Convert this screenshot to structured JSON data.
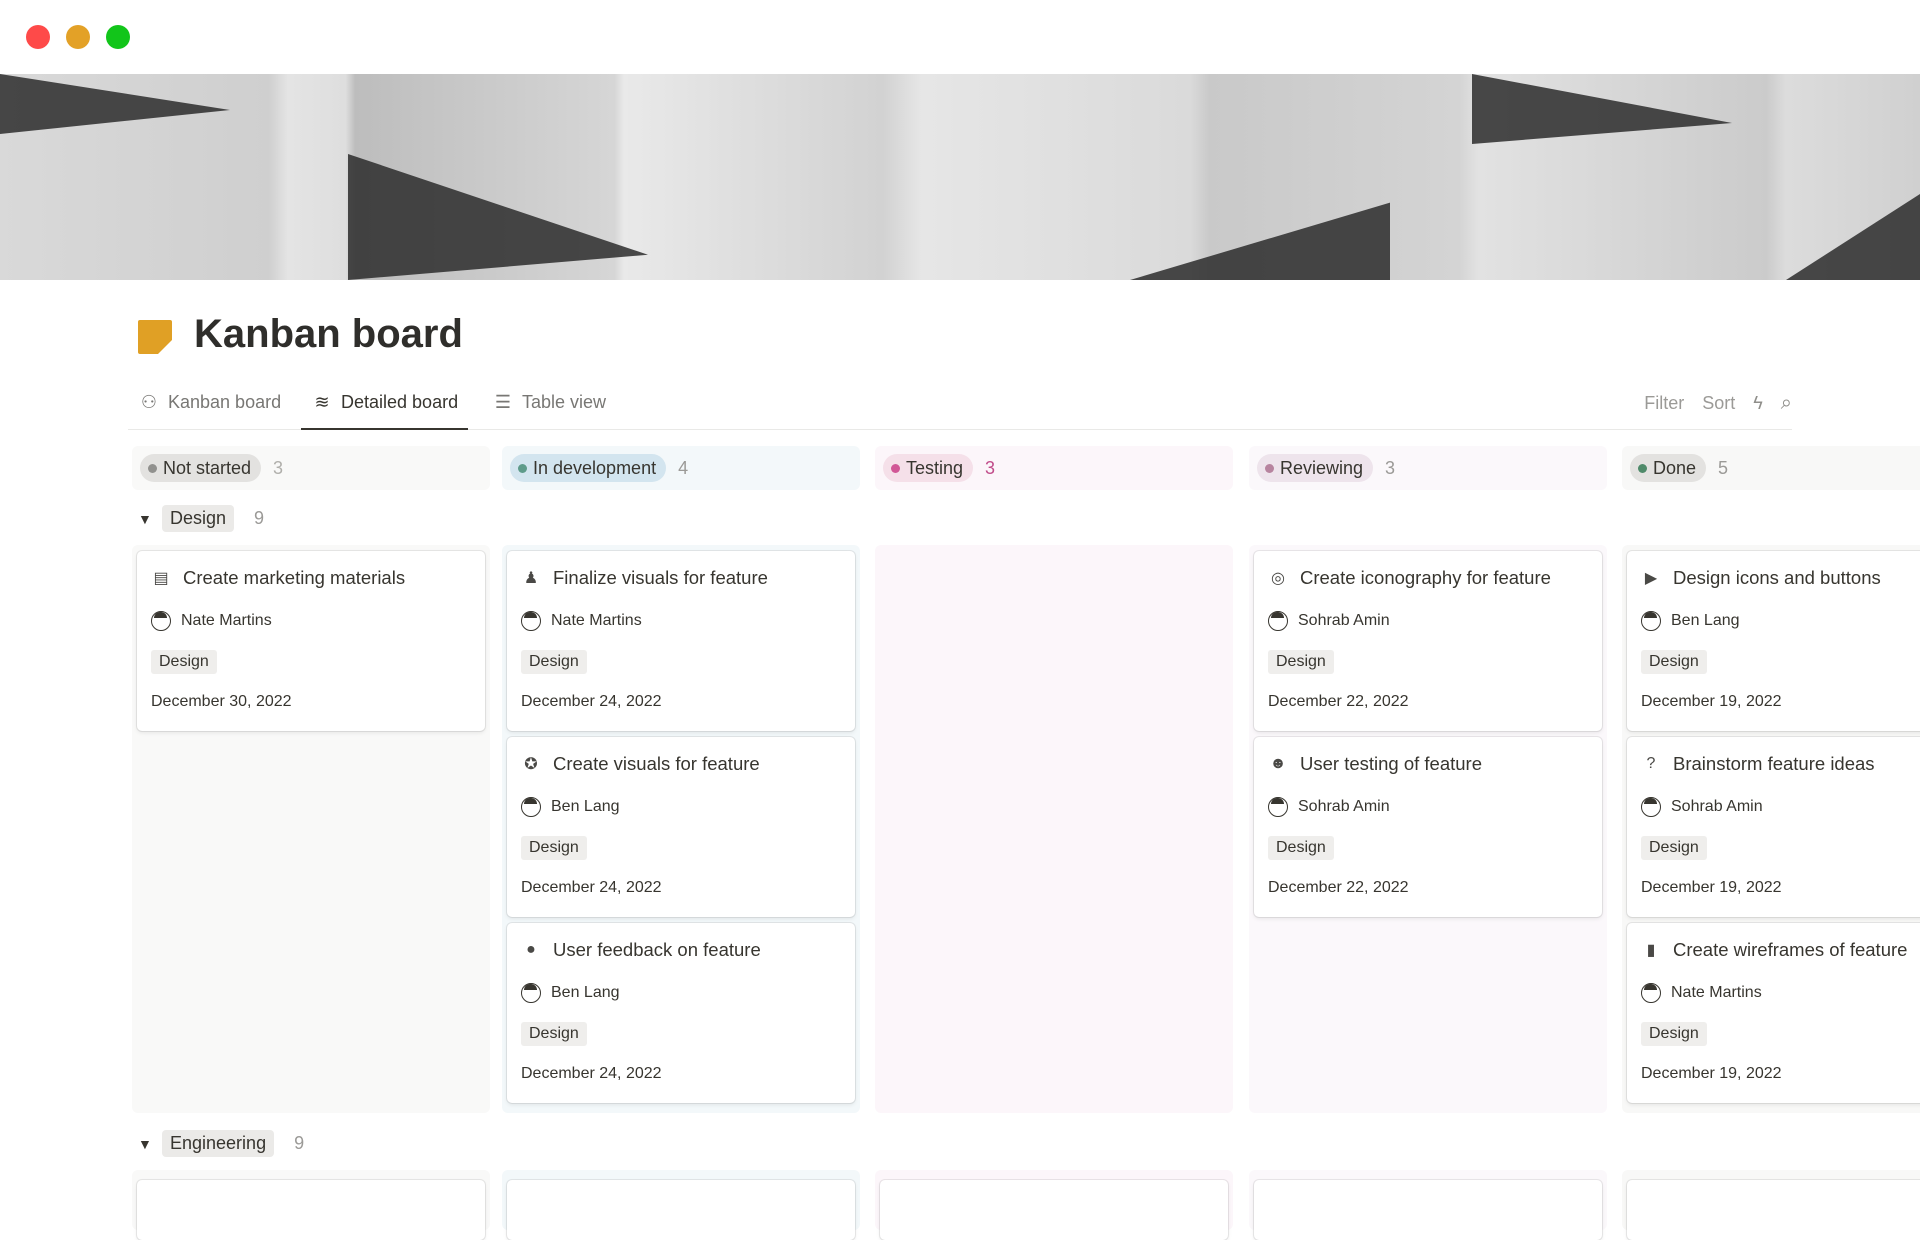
{
  "window": {
    "controls": [
      {
        "name": "close",
        "color": "#fe4a49"
      },
      {
        "name": "minimize",
        "color": "#e3a127"
      },
      {
        "name": "maximize",
        "color": "#12c51a"
      }
    ]
  },
  "page": {
    "title": "Kanban board",
    "icon": "sticky-note-icon",
    "icon_color": "#e0a025"
  },
  "tabs": [
    {
      "label": "Kanban board",
      "icon": "graph-icon",
      "active": false
    },
    {
      "label": "Detailed board",
      "icon": "zigzag-icon",
      "active": true
    },
    {
      "label": "Table view",
      "icon": "list-icon",
      "active": false
    }
  ],
  "toolbar": {
    "filter": "Filter",
    "sort": "Sort",
    "automation_icon": "lightning-icon",
    "search_icon": "search-icon"
  },
  "columns": [
    {
      "label": "Not started",
      "count": "3",
      "pill_color": "#e3e2e0",
      "dot_color": "#91918e",
      "bg": "#f9f9f8",
      "count_color": "#b0afab"
    },
    {
      "label": "In development",
      "count": "4",
      "pill_color": "#d3e5ef",
      "dot_color": "#5e9b8a",
      "bg": "#f3f8fa",
      "count_color": "#9b9a97"
    },
    {
      "label": "Testing",
      "count": "3",
      "pill_color": "#f5e0e9",
      "dot_color": "#d15796",
      "bg": "#fcf6fa",
      "count_color": "#c14c8a"
    },
    {
      "label": "Reviewing",
      "count": "3",
      "pill_color": "#eee4ec",
      "dot_color": "#b7849f",
      "bg": "#fbf8fb",
      "count_color": "#9b9a97"
    },
    {
      "label": "Done",
      "count": "5",
      "pill_color": "#e3e2e0",
      "dot_color": "#4f8a6a",
      "bg": "#f8f8f7",
      "count_color": "#9b9a97"
    }
  ],
  "groups": [
    {
      "label": "Design",
      "count": "9",
      "cards": [
        [
          {
            "title": "Create marketing materials",
            "icon": "layout-icon",
            "glyph": "▤",
            "person": "Nate Martins",
            "tag": "Design",
            "date": "December 30, 2022"
          }
        ],
        [
          {
            "title": "Finalize visuals for feature",
            "icon": "brush-icon",
            "glyph": "♟",
            "person": "Nate Martins",
            "tag": "Design",
            "date": "December 24, 2022"
          },
          {
            "title": "Create visuals for feature",
            "icon": "palette-icon",
            "glyph": "✪",
            "person": "Ben Lang",
            "tag": "Design",
            "date": "December 24, 2022"
          },
          {
            "title": "User feedback on feature",
            "icon": "chat-bubble-icon",
            "glyph": "●",
            "person": "Ben Lang",
            "tag": "Design",
            "date": "December 24, 2022"
          }
        ],
        [],
        [
          {
            "title": "Create iconography for feature",
            "icon": "target-icon",
            "glyph": "◎",
            "person": "Sohrab Amin",
            "tag": "Design",
            "date": "December 22, 2022"
          },
          {
            "title": "User testing of feature",
            "icon": "user-circle-icon",
            "glyph": "☻",
            "person": "Sohrab Amin",
            "tag": "Design",
            "date": "December 22, 2022"
          }
        ],
        [
          {
            "title": "Design icons and buttons",
            "icon": "play-circle-icon",
            "glyph": "▶",
            "person": "Ben Lang",
            "tag": "Design",
            "date": "December 19, 2022"
          },
          {
            "title": "Brainstorm feature ideas",
            "icon": "question-bubble-icon",
            "glyph": "?",
            "person": "Sohrab Amin",
            "tag": "Design",
            "date": "December 19, 2022"
          },
          {
            "title": "Create wireframes of feature",
            "icon": "phone-icon",
            "glyph": "▮",
            "person": "Nate Martins",
            "tag": "Design",
            "date": "December 19, 2022"
          }
        ]
      ]
    },
    {
      "label": "Engineering",
      "count": "9",
      "cards": []
    }
  ]
}
